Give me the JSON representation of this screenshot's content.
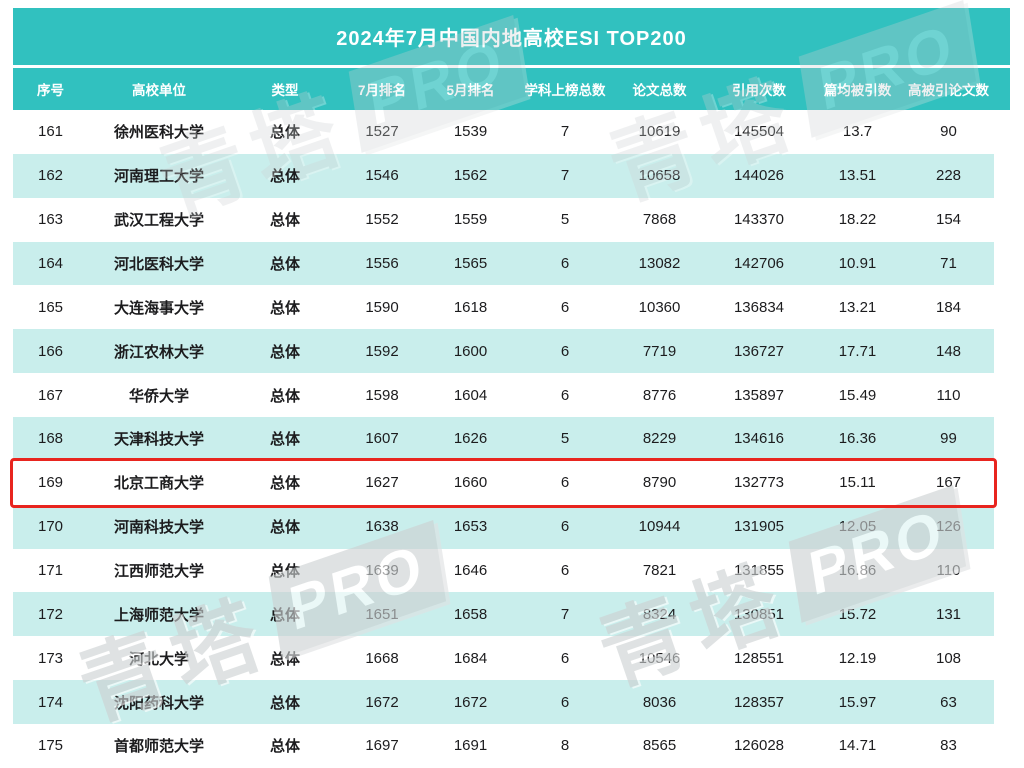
{
  "title": "2024年7月中国内地高校ESI TOP200",
  "watermark": {
    "cn": "青塔",
    "badge": "PRO"
  },
  "colors": {
    "header_teal": "#31c1bf",
    "row_alt_teal": "#c9eeec",
    "highlight_border": "#e8251f",
    "text": "#1c1c1e",
    "header_text": "#ffffff"
  },
  "table": {
    "columns": [
      "序号",
      "高校单位",
      "类型",
      "7月排名",
      "5月排名",
      "学科上榜总数",
      "论文总数",
      "引用次数",
      "篇均被引数",
      "高被引论文数"
    ],
    "highlighted_row_no": "169",
    "highlighted_row_index": 8,
    "rows": [
      [
        "161",
        "徐州医科大学",
        "总体",
        "1527",
        "1539",
        "7",
        "10619",
        "145504",
        "13.7",
        "90"
      ],
      [
        "162",
        "河南理工大学",
        "总体",
        "1546",
        "1562",
        "7",
        "10658",
        "144026",
        "13.51",
        "228"
      ],
      [
        "163",
        "武汉工程大学",
        "总体",
        "1552",
        "1559",
        "5",
        "7868",
        "143370",
        "18.22",
        "154"
      ],
      [
        "164",
        "河北医科大学",
        "总体",
        "1556",
        "1565",
        "6",
        "13082",
        "142706",
        "10.91",
        "71"
      ],
      [
        "165",
        "大连海事大学",
        "总体",
        "1590",
        "1618",
        "6",
        "10360",
        "136834",
        "13.21",
        "184"
      ],
      [
        "166",
        "浙江农林大学",
        "总体",
        "1592",
        "1600",
        "6",
        "7719",
        "136727",
        "17.71",
        "148"
      ],
      [
        "167",
        "华侨大学",
        "总体",
        "1598",
        "1604",
        "6",
        "8776",
        "135897",
        "15.49",
        "110"
      ],
      [
        "168",
        "天津科技大学",
        "总体",
        "1607",
        "1626",
        "5",
        "8229",
        "134616",
        "16.36",
        "99"
      ],
      [
        "169",
        "北京工商大学",
        "总体",
        "1627",
        "1660",
        "6",
        "8790",
        "132773",
        "15.11",
        "167"
      ],
      [
        "170",
        "河南科技大学",
        "总体",
        "1638",
        "1653",
        "6",
        "10944",
        "131905",
        "12.05",
        "126"
      ],
      [
        "171",
        "江西师范大学",
        "总体",
        "1639",
        "1646",
        "6",
        "7821",
        "131855",
        "16.86",
        "110"
      ],
      [
        "172",
        "上海师范大学",
        "总体",
        "1651",
        "1658",
        "7",
        "8324",
        "130851",
        "15.72",
        "131"
      ],
      [
        "173",
        "河北大学",
        "总体",
        "1668",
        "1684",
        "6",
        "10546",
        "128551",
        "12.19",
        "108"
      ],
      [
        "174",
        "沈阳药科大学",
        "总体",
        "1672",
        "1672",
        "6",
        "8036",
        "128357",
        "15.97",
        "63"
      ],
      [
        "175",
        "首都师范大学",
        "总体",
        "1697",
        "1691",
        "8",
        "8565",
        "126028",
        "14.71",
        "83"
      ]
    ]
  },
  "chart_data": {
    "type": "table",
    "title": "2024年7月中国内地高校ESI TOP200",
    "columns": [
      "序号",
      "高校单位",
      "类型",
      "7月排名",
      "5月排名",
      "学科上榜总数",
      "论文总数",
      "引用次数",
      "篇均被引数",
      "高被引论文数"
    ],
    "rows": [
      [
        161,
        "徐州医科大学",
        "总体",
        1527,
        1539,
        7,
        10619,
        145504,
        13.7,
        90
      ],
      [
        162,
        "河南理工大学",
        "总体",
        1546,
        1562,
        7,
        10658,
        144026,
        13.51,
        228
      ],
      [
        163,
        "武汉工程大学",
        "总体",
        1552,
        1559,
        5,
        7868,
        143370,
        18.22,
        154
      ],
      [
        164,
        "河北医科大学",
        "总体",
        1556,
        1565,
        6,
        13082,
        142706,
        10.91,
        71
      ],
      [
        165,
        "大连海事大学",
        "总体",
        1590,
        1618,
        6,
        10360,
        136834,
        13.21,
        184
      ],
      [
        166,
        "浙江农林大学",
        "总体",
        1592,
        1600,
        6,
        7719,
        136727,
        17.71,
        148
      ],
      [
        167,
        "华侨大学",
        "总体",
        1598,
        1604,
        6,
        8776,
        135897,
        15.49,
        110
      ],
      [
        168,
        "天津科技大学",
        "总体",
        1607,
        1626,
        5,
        8229,
        134616,
        16.36,
        99
      ],
      [
        169,
        "北京工商大学",
        "总体",
        1627,
        1660,
        6,
        8790,
        132773,
        15.11,
        167
      ],
      [
        170,
        "河南科技大学",
        "总体",
        1638,
        1653,
        6,
        10944,
        131905,
        12.05,
        126
      ],
      [
        171,
        "江西师范大学",
        "总体",
        1639,
        1646,
        6,
        7821,
        131855,
        16.86,
        110
      ],
      [
        172,
        "上海师范大学",
        "总体",
        1651,
        1658,
        7,
        8324,
        130851,
        15.72,
        131
      ],
      [
        173,
        "河北大学",
        "总体",
        1668,
        1684,
        6,
        10546,
        128551,
        12.19,
        108
      ],
      [
        174,
        "沈阳药科大学",
        "总体",
        1672,
        1672,
        6,
        8036,
        128357,
        15.97,
        63
      ],
      [
        175,
        "首都师范大学",
        "总体",
        1697,
        1691,
        8,
        8565,
        126028,
        14.71,
        83
      ]
    ],
    "highlighted_row": 169,
    "notes": "rows 161-175 of TOP200 list; row 169 outlined in red"
  }
}
